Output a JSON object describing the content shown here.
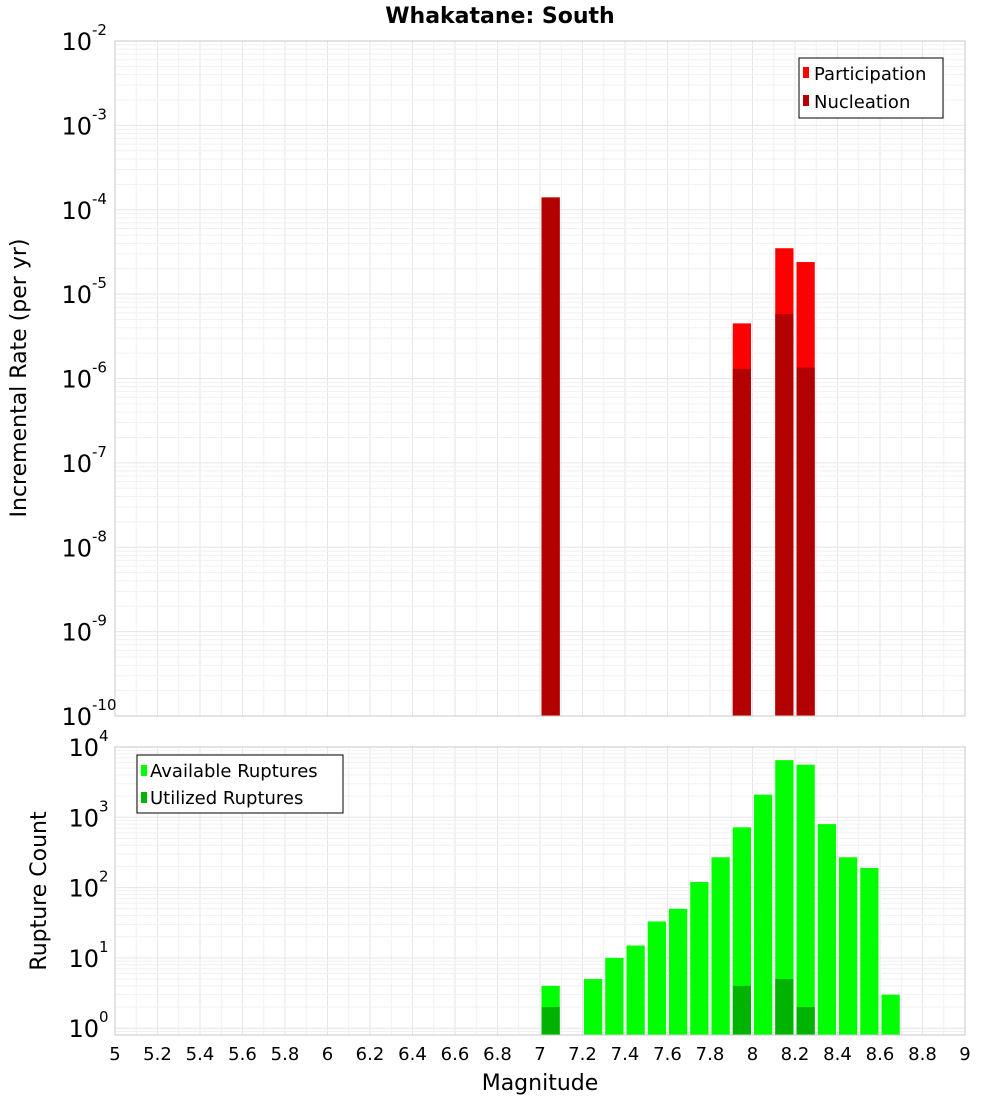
{
  "chart_data": [
    {
      "type": "bar",
      "panel": "top",
      "title": "Whakatane: South",
      "xlabel": "",
      "ylabel": "Incremental Rate (per yr)",
      "yscale": "log",
      "xlim": [
        5,
        9
      ],
      "ylim": [
        1e-10,
        0.01
      ],
      "bin_width": 0.1,
      "y_tick_labels": [
        {
          "base": "10",
          "exp": "-10",
          "value": 1e-10
        },
        {
          "base": "10",
          "exp": "-9",
          "value": 1e-09
        },
        {
          "base": "10",
          "exp": "-8",
          "value": 1e-08
        },
        {
          "base": "10",
          "exp": "-7",
          "value": 1e-07
        },
        {
          "base": "10",
          "exp": "-6",
          "value": 1e-06
        },
        {
          "base": "10",
          "exp": "-5",
          "value": 1e-05
        },
        {
          "base": "10",
          "exp": "-4",
          "value": 0.0001
        },
        {
          "base": "10",
          "exp": "-3",
          "value": 0.001
        },
        {
          "base": "10",
          "exp": "-2",
          "value": 0.01
        }
      ],
      "legend_position": "top-right",
      "series": [
        {
          "name": "Participation",
          "color": "#ff0000",
          "x": [
            7.05,
            7.95,
            8.15,
            8.25
          ],
          "values": [
            0.00014,
            4.5e-06,
            3.5e-05,
            2.4e-05
          ]
        },
        {
          "name": "Nucleation",
          "color": "#b30000",
          "x": [
            7.05,
            7.95,
            8.15,
            8.25
          ],
          "values": [
            0.00014,
            1.3e-06,
            5.8e-06,
            1.35e-06
          ]
        }
      ]
    },
    {
      "type": "bar",
      "panel": "bottom",
      "title": "",
      "xlabel": "Magnitude",
      "ylabel": "Rupture Count",
      "yscale": "log",
      "xlim": [
        5,
        9
      ],
      "ylim": [
        0.8,
        10000
      ],
      "bin_width": 0.1,
      "x_tick_labels": [
        "5",
        "5.2",
        "5.4",
        "5.6",
        "5.8",
        "6",
        "6.2",
        "6.4",
        "6.6",
        "6.8",
        "7",
        "7.2",
        "7.4",
        "7.6",
        "7.8",
        "8",
        "8.2",
        "8.4",
        "8.6",
        "8.8",
        "9"
      ],
      "y_tick_labels": [
        {
          "base": "10",
          "exp": "0",
          "value": 1
        },
        {
          "base": "10",
          "exp": "1",
          "value": 10
        },
        {
          "base": "10",
          "exp": "2",
          "value": 100
        },
        {
          "base": "10",
          "exp": "3",
          "value": 1000
        },
        {
          "base": "10",
          "exp": "4",
          "value": 10000
        }
      ],
      "legend_position": "top-left",
      "series": [
        {
          "name": "Available Ruptures",
          "color": "#00ff00",
          "x": [
            7.05,
            7.25,
            7.35,
            7.45,
            7.55,
            7.65,
            7.75,
            7.85,
            7.95,
            8.05,
            8.15,
            8.25,
            8.35,
            8.45,
            8.55,
            8.65
          ],
          "values": [
            4,
            5,
            10,
            15,
            33,
            50,
            120,
            270,
            720,
            2100,
            6500,
            5600,
            800,
            270,
            190,
            3
          ]
        },
        {
          "name": "Utilized Ruptures",
          "color": "#00b300",
          "x": [
            7.05,
            7.95,
            8.15,
            8.25
          ],
          "values": [
            2,
            4,
            5,
            2
          ]
        }
      ]
    }
  ]
}
